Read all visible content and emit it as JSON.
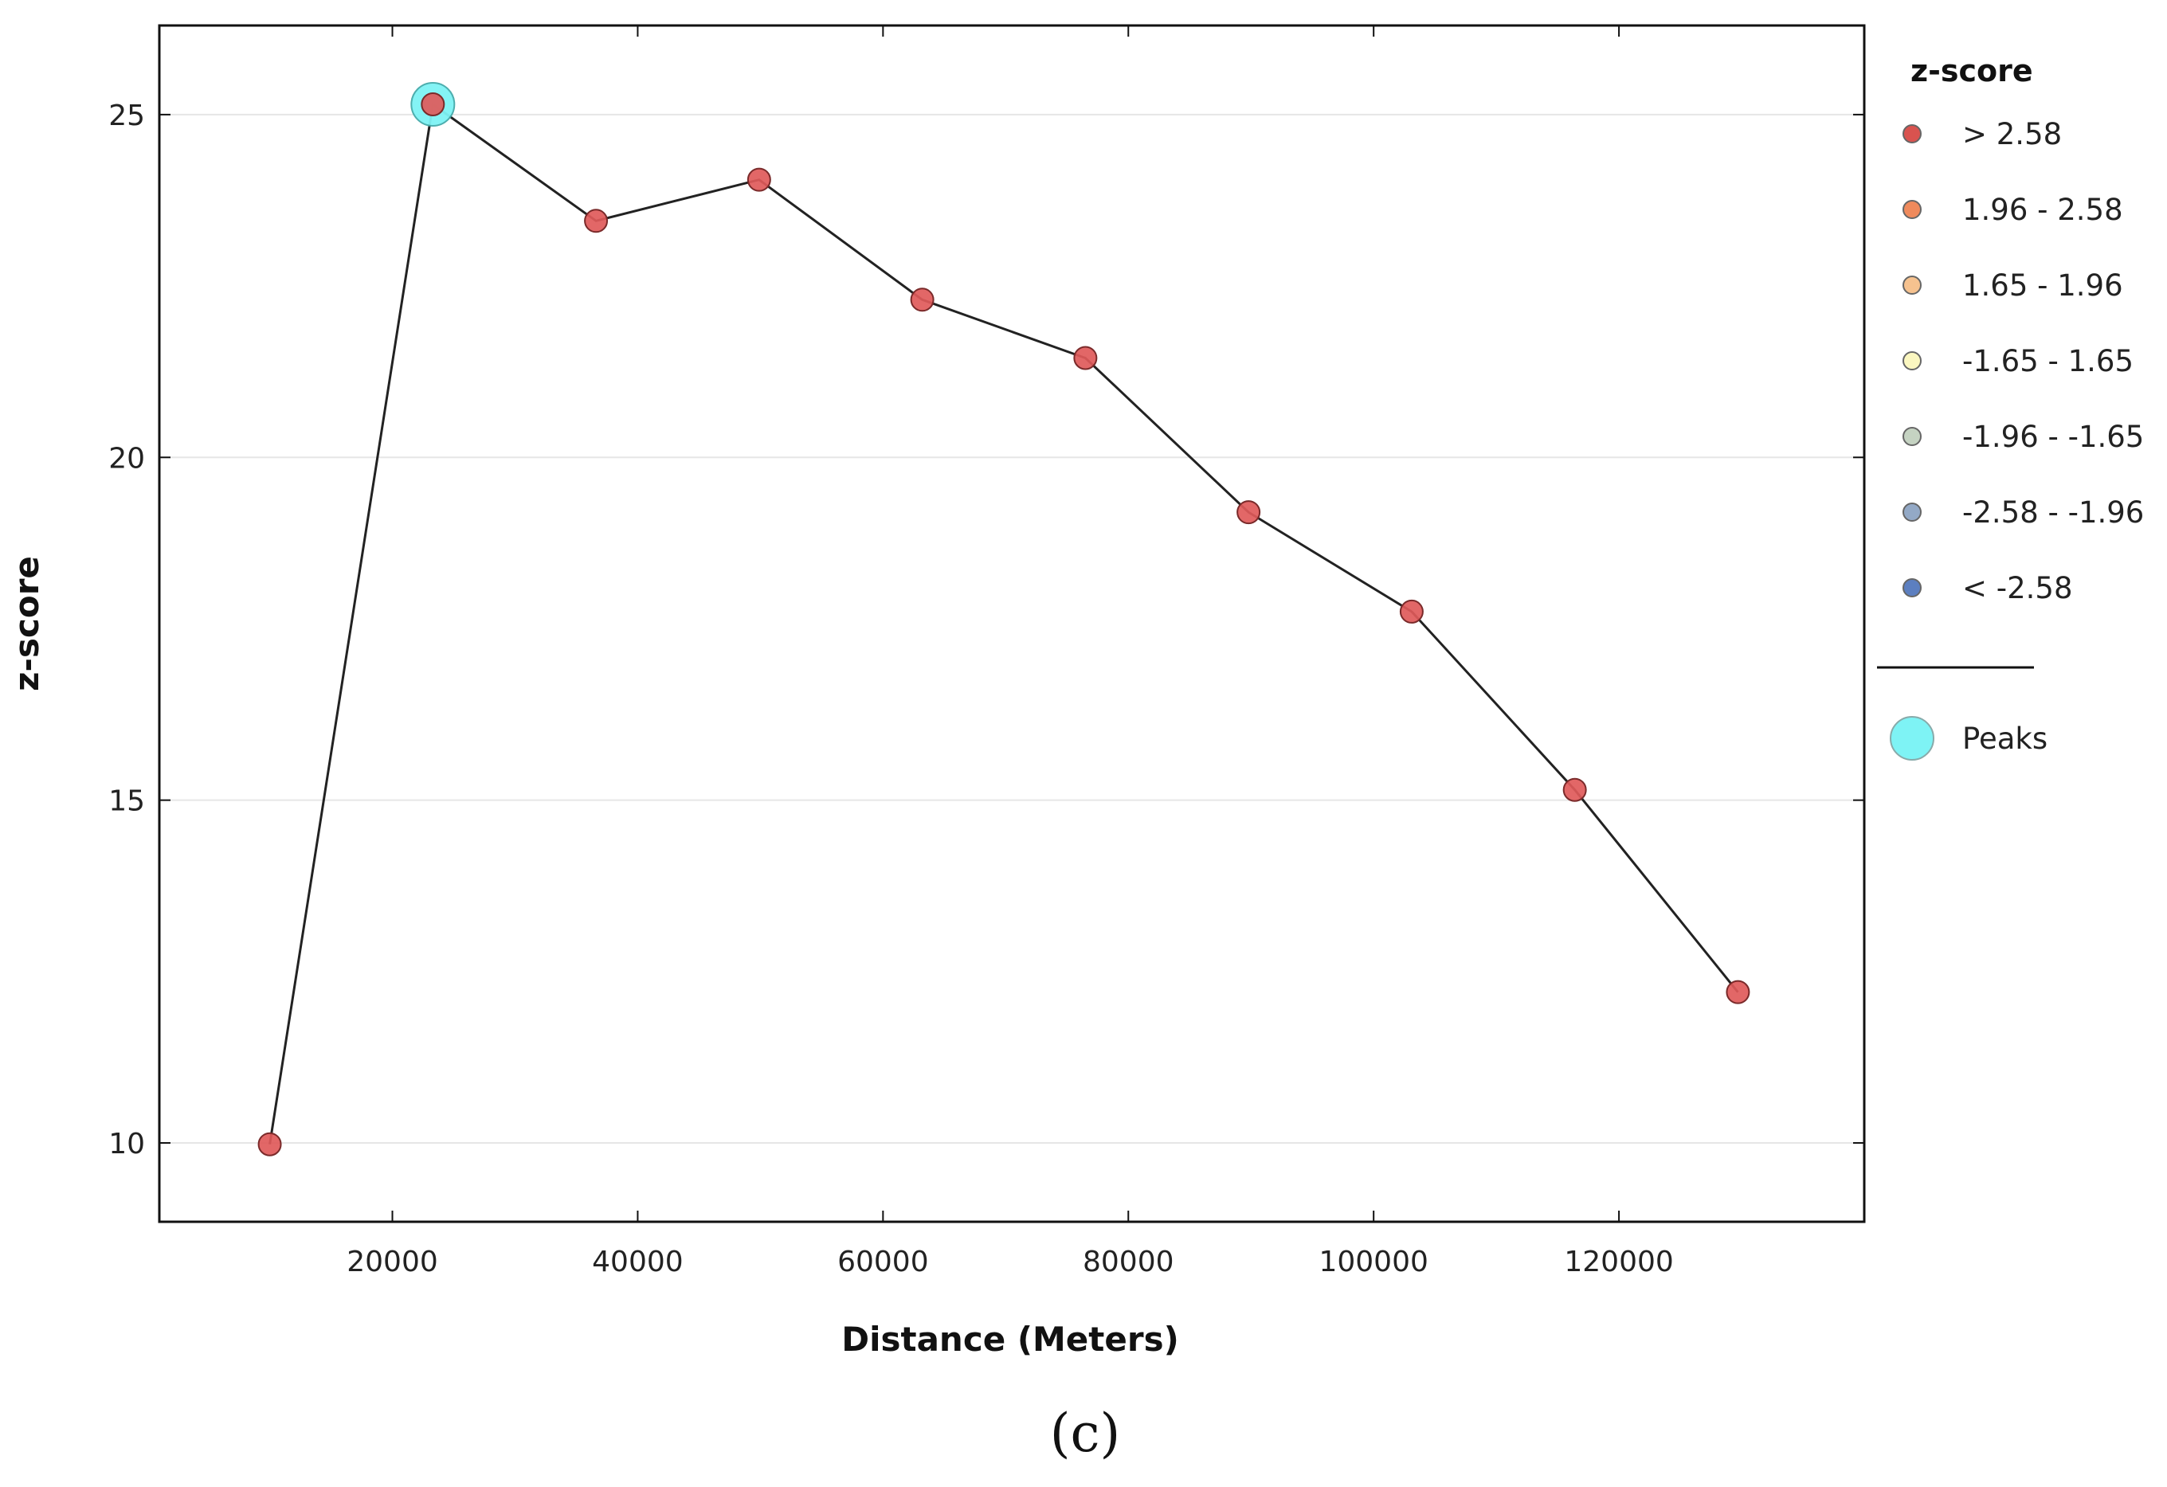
{
  "chart_data": {
    "type": "line",
    "xlabel": "Distance (Meters)",
    "ylabel": "z-score",
    "xlim": [
      1000,
      140000
    ],
    "ylim": [
      8.85,
      26.3
    ],
    "xticks": [
      20000,
      40000,
      60000,
      80000,
      100000,
      120000
    ],
    "xtick_labels": [
      "20000",
      "40000",
      "60000",
      "80000",
      "100000",
      "120000"
    ],
    "yticks": [
      10,
      15,
      20,
      25
    ],
    "ytick_labels": [
      "10",
      "15",
      "20",
      "25"
    ],
    "grid": "horizontal",
    "series": [
      {
        "x": [
          10000,
          23300,
          36600,
          49900,
          63200,
          76500,
          89800,
          103100,
          116400,
          129700
        ],
        "y": [
          9.98,
          25.15,
          23.45,
          24.05,
          22.3,
          21.45,
          19.2,
          17.75,
          15.15,
          12.2
        ],
        "color": "#e05a5a"
      }
    ],
    "peaks": [
      {
        "x": 23300,
        "y": 25.15
      }
    ],
    "legend": {
      "position": "right",
      "title": "z-score",
      "items": [
        {
          "label": "> 2.58",
          "color": "#d9534f"
        },
        {
          "label": "1.96 - 2.58",
          "color": "#ef8a5c"
        },
        {
          "label": "1.65 - 1.96",
          "color": "#f6c28f"
        },
        {
          "label": "-1.65 - 1.65",
          "color": "#fbf7c0"
        },
        {
          "label": "-1.96 - -1.65",
          "color": "#c5d3c2"
        },
        {
          "label": "-2.58 - -1.96",
          "color": "#93a9c6"
        },
        {
          "label": "< -2.58",
          "color": "#5c7fc0"
        }
      ],
      "peaks_label": "Peaks",
      "peaks_color": "#7ef3f5"
    }
  },
  "caption": "(c)"
}
